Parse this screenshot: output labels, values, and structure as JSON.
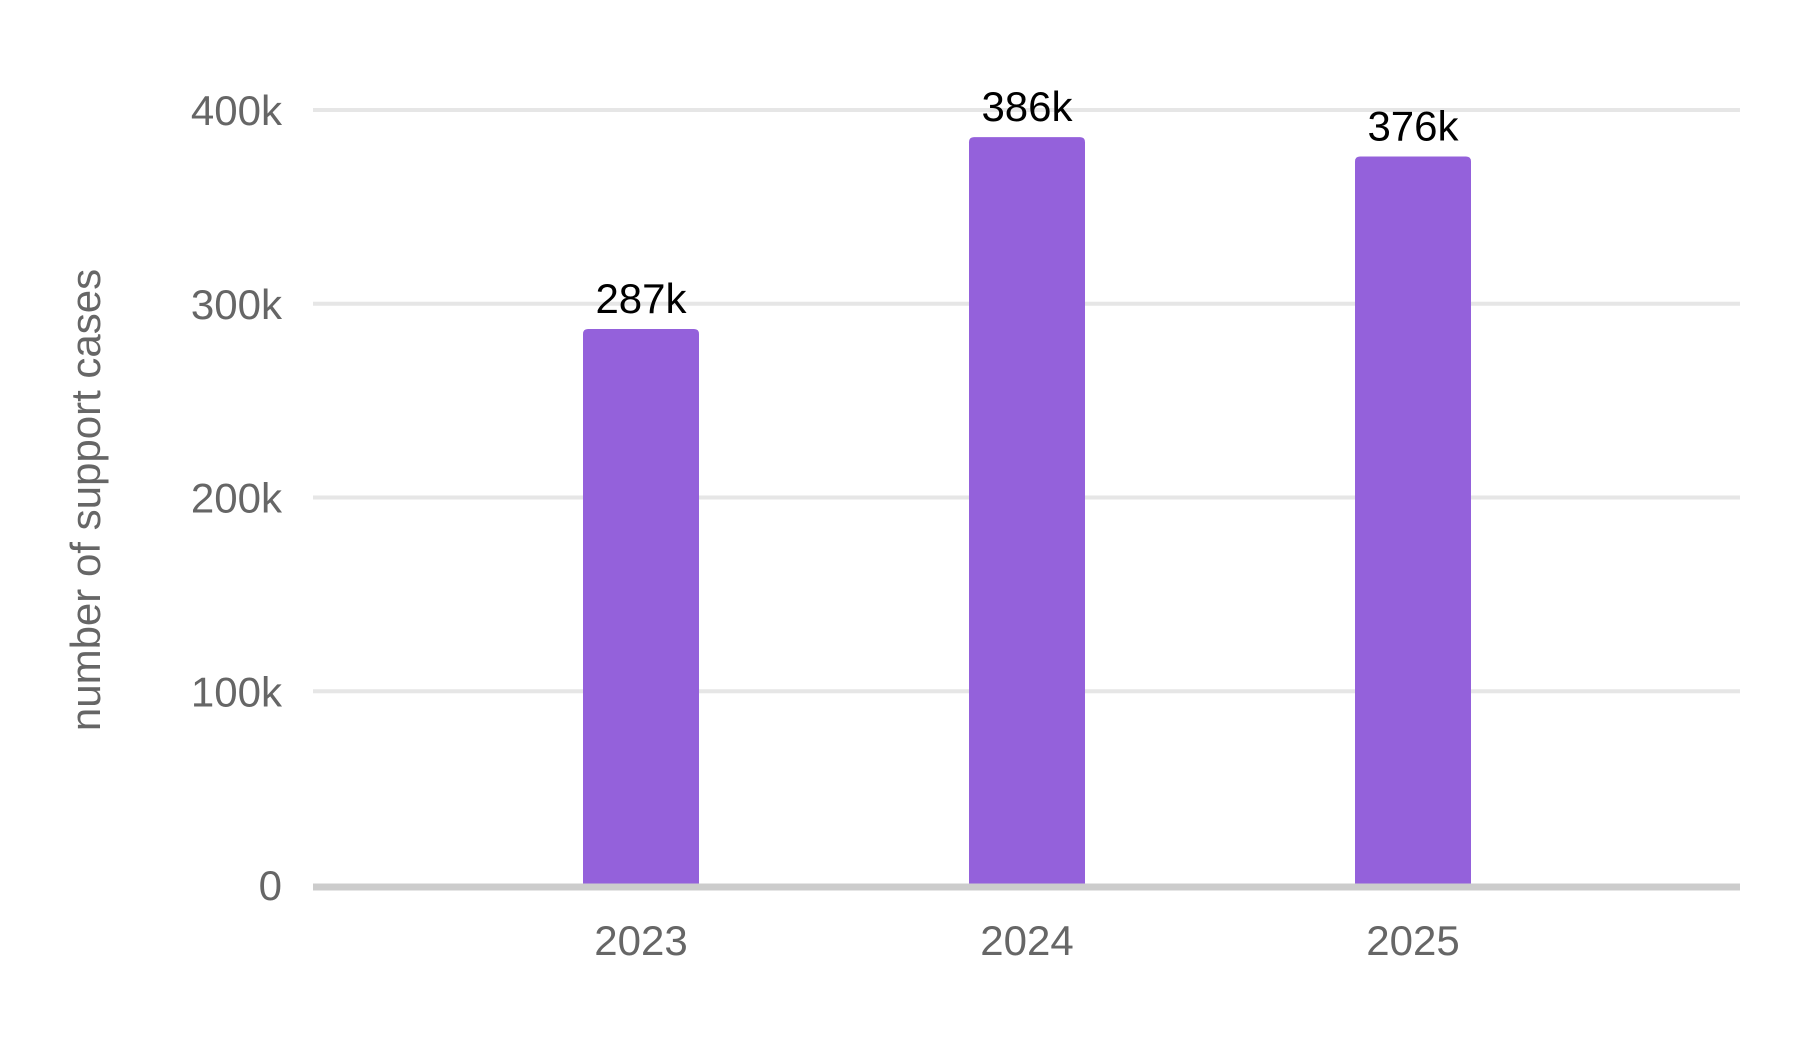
{
  "chart_data": {
    "type": "bar",
    "title": "",
    "xlabel": "",
    "ylabel": "number of support cases",
    "categories": [
      "2023",
      "2024",
      "2025"
    ],
    "values": [
      287000,
      386000,
      376000
    ],
    "data_labels": [
      "287k",
      "386k",
      "376k"
    ],
    "ylim": [
      0,
      400000
    ],
    "yticks": [
      0,
      100000,
      200000,
      300000,
      400000
    ],
    "ytick_labels": [
      "0",
      "100k",
      "200k",
      "300k",
      "400k"
    ],
    "grid": true,
    "legend": "none",
    "colors": {
      "bar": "#9461db",
      "gridline": "#e6e6e6",
      "baseline": "#cccccc",
      "tick_text": "#666666",
      "data_label_text": "#000000"
    }
  }
}
